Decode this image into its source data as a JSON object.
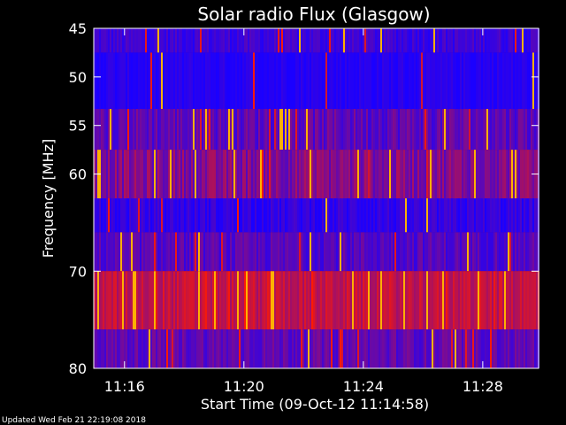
{
  "chart_data": {
    "type": "heatmap",
    "title": "Solar radio Flux (Glasgow)",
    "xlabel": "Start Time (09-Oct-12 11:14:58)",
    "ylabel": "Frequency [MHz]",
    "x_ticks": [
      "11:16",
      "11:20",
      "11:24",
      "11:28"
    ],
    "x_tick_minutes": [
      1.03,
      5.03,
      9.03,
      13.03
    ],
    "x_range_minutes": [
      0,
      14.9
    ],
    "y_ticks": [
      45,
      50,
      55,
      60,
      70,
      80
    ],
    "y_range": [
      45,
      80
    ],
    "colormap": [
      "#1a00ff",
      "#ff1a00"
    ],
    "bands": [
      {
        "from": 45,
        "to": 47.5,
        "level": 0.15,
        "variance": 0.12,
        "spikes": 0.05
      },
      {
        "from": 47.5,
        "to": 53.3,
        "level": 0.05,
        "variance": 0.08,
        "spikes": 0.02
      },
      {
        "from": 53.3,
        "to": 57.5,
        "level": 0.3,
        "variance": 0.18,
        "spikes": 0.08
      },
      {
        "from": 57.5,
        "to": 62.5,
        "level": 0.45,
        "variance": 0.2,
        "spikes": 0.1
      },
      {
        "from": 62.5,
        "to": 66.0,
        "level": 0.1,
        "variance": 0.12,
        "spikes": 0.04
      },
      {
        "from": 66.0,
        "to": 70.0,
        "level": 0.25,
        "variance": 0.15,
        "spikes": 0.06
      },
      {
        "from": 70.0,
        "to": 76.0,
        "level": 0.72,
        "variance": 0.15,
        "spikes": 0.16
      },
      {
        "from": 76.0,
        "to": 80.0,
        "level": 0.3,
        "variance": 0.15,
        "spikes": 0.05
      }
    ]
  },
  "footer_text": "Updated Wed Feb 21 22:19:08 2018"
}
